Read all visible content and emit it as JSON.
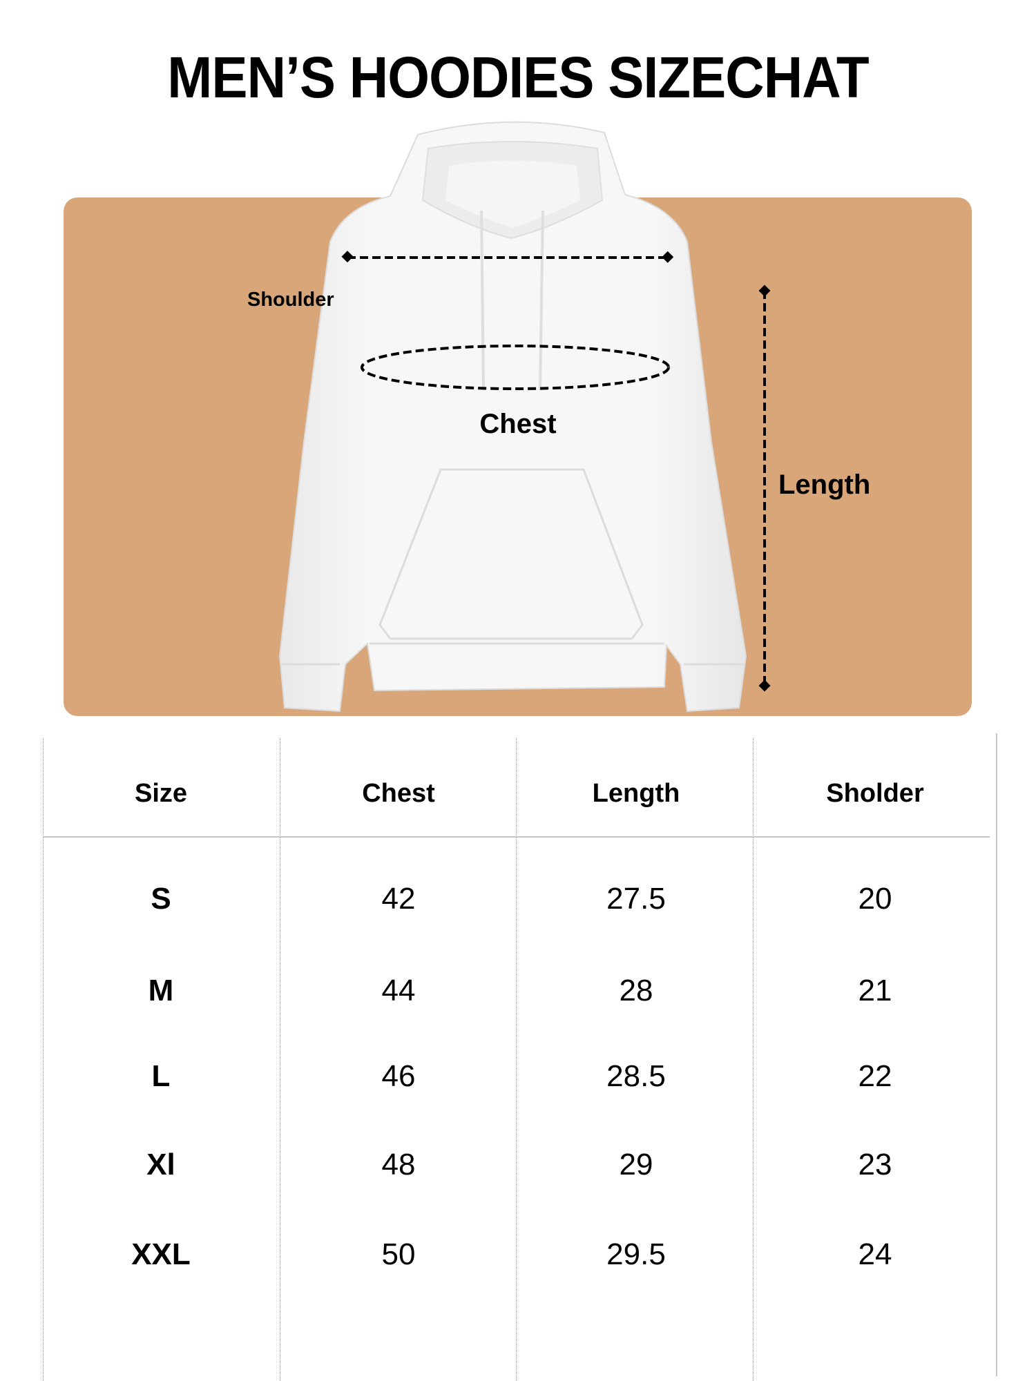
{
  "title": "MEN’S HOODIES SIZECHAT",
  "colors": {
    "panel": "#D8A679",
    "hoodie": "#F4F4F4",
    "line": "#000000"
  },
  "diagram": {
    "shoulder_label": "Shoulder",
    "chest_label": "Chest",
    "length_label": "Length"
  },
  "table": {
    "headers": [
      "Size",
      "Chest",
      "Length",
      "Sholder"
    ],
    "rows": [
      [
        "S",
        "42",
        "27.5",
        "20"
      ],
      [
        "M",
        "44",
        "28",
        "21"
      ],
      [
        "L",
        "46",
        "28.5",
        "22"
      ],
      [
        "Xl",
        "48",
        "29",
        "23"
      ],
      [
        "XXL",
        "50",
        "29.5",
        "24"
      ]
    ]
  }
}
